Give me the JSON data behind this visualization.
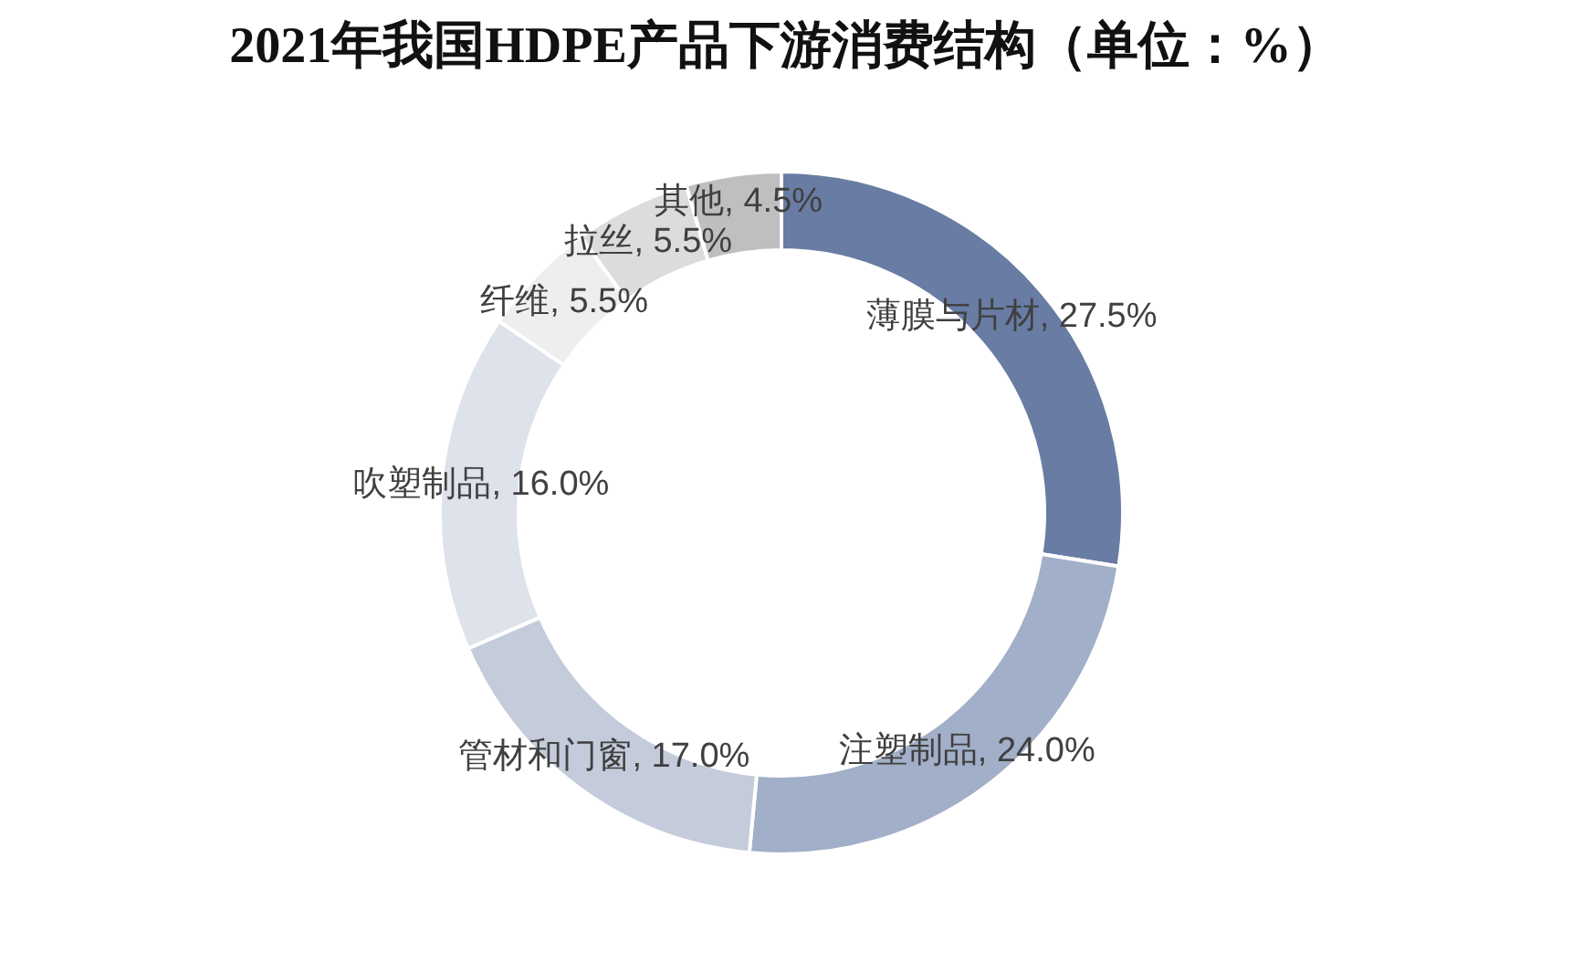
{
  "chart_data": {
    "type": "donut",
    "title": "2021年我国HDPE产品下游消费结构（单位：%）",
    "categories": [
      "薄膜与片材",
      "注塑制品",
      "管材和门窗",
      "吹塑制品",
      "纤维",
      "拉丝",
      "其他"
    ],
    "values": [
      27.5,
      24.0,
      17.0,
      16.0,
      5.5,
      5.5,
      4.5
    ],
    "colors": [
      "#687ca4",
      "#a2afc8",
      "#c4cbdb",
      "#dee2eb",
      "#eeeeee",
      "#dcdcdc",
      "#bfbfbf"
    ],
    "value_labels": [
      "27.5%",
      "24.0%",
      "17.0%",
      "16.0%",
      "5.5%",
      "5.5%",
      "4.5%"
    ]
  }
}
